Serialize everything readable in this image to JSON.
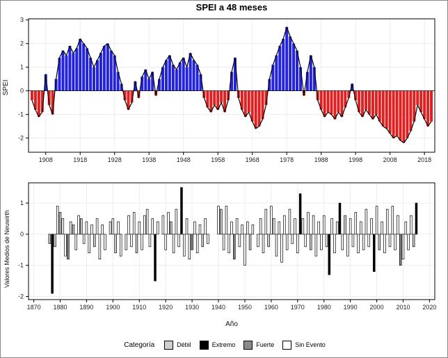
{
  "chart_data": [
    {
      "type": "area",
      "title": "SPEI a 48 meses",
      "xlabel": "",
      "ylabel": "SPEI",
      "xlim": [
        1903,
        2021
      ],
      "ylim": [
        -2.6,
        3.05
      ],
      "x_ticks": [
        1908,
        1918,
        1928,
        1938,
        1948,
        1958,
        1968,
        1978,
        1988,
        1998,
        2008,
        2018
      ],
      "y_ticks": [
        -2,
        -1,
        0,
        1,
        2,
        3
      ],
      "positive_color": "#2323dd",
      "negative_color": "#e02020",
      "line_color": "#000000",
      "grid": true,
      "x": [
        1904,
        1905,
        1906,
        1907,
        1908,
        1909,
        1910,
        1911,
        1912,
        1913,
        1914,
        1915,
        1916,
        1917,
        1918,
        1919,
        1920,
        1921,
        1922,
        1923,
        1924,
        1925,
        1926,
        1927,
        1928,
        1929,
        1930,
        1931,
        1932,
        1933,
        1934,
        1935,
        1936,
        1937,
        1938,
        1939,
        1940,
        1941,
        1942,
        1943,
        1944,
        1945,
        1946,
        1947,
        1948,
        1949,
        1950,
        1951,
        1952,
        1953,
        1954,
        1955,
        1956,
        1957,
        1958,
        1959,
        1960,
        1961,
        1962,
        1963,
        1964,
        1965,
        1966,
        1967,
        1968,
        1969,
        1970,
        1971,
        1972,
        1973,
        1974,
        1975,
        1976,
        1977,
        1978,
        1979,
        1980,
        1981,
        1982,
        1983,
        1984,
        1985,
        1986,
        1987,
        1988,
        1989,
        1990,
        1991,
        1992,
        1993,
        1994,
        1995,
        1996,
        1997,
        1998,
        1999,
        2000,
        2001,
        2002,
        2003,
        2004,
        2005,
        2006,
        2007,
        2008,
        2009,
        2010,
        2011,
        2012,
        2013,
        2014,
        2015,
        2016,
        2017,
        2018,
        2019,
        2020
      ],
      "y": [
        -0.4,
        -0.8,
        -1.1,
        -0.9,
        0.7,
        -0.6,
        -1.0,
        0.5,
        1.4,
        1.7,
        1.5,
        1.9,
        1.6,
        1.8,
        2.2,
        2.0,
        1.8,
        1.4,
        1.0,
        1.3,
        1.6,
        1.9,
        2.0,
        1.7,
        1.5,
        0.8,
        0.3,
        -0.4,
        -0.8,
        -0.5,
        0.4,
        -0.3,
        0.6,
        0.9,
        0.5,
        0.8,
        -0.2,
        0.5,
        1.0,
        1.3,
        1.5,
        1.1,
        0.9,
        1.2,
        1.4,
        1.0,
        1.6,
        1.3,
        1.1,
        0.7,
        -0.3,
        -0.7,
        -0.9,
        -0.6,
        -0.8,
        -0.5,
        -0.9,
        -0.4,
        0.8,
        1.4,
        -0.3,
        -0.8,
        -1.1,
        -0.9,
        -1.3,
        -1.6,
        -1.5,
        -1.2,
        -0.6,
        0.5,
        1.1,
        1.5,
        1.9,
        2.2,
        2.7,
        2.3,
        2.0,
        1.7,
        1.0,
        -0.2,
        0.8,
        1.5,
        1.0,
        -0.4,
        -0.8,
        -1.1,
        -0.9,
        -1.0,
        -1.2,
        -0.9,
        -1.1,
        -0.7,
        -0.3,
        0.3,
        -0.4,
        -0.9,
        -1.1,
        -0.8,
        -1.0,
        -1.2,
        -1.0,
        -1.3,
        -1.5,
        -1.6,
        -1.8,
        -2.0,
        -1.9,
        -2.1,
        -2.2,
        -2.0,
        -1.7,
        -1.3,
        -0.6,
        -0.9,
        -1.2,
        -1.5,
        -1.3
      ]
    },
    {
      "type": "bar",
      "title": "",
      "xlabel": "Año",
      "ylabel": "Valores Medios de Neuwirth",
      "xlim": [
        1868,
        2022
      ],
      "ylim": [
        -2.1,
        1.65
      ],
      "x_ticks": [
        1870,
        1880,
        1890,
        1900,
        1910,
        1920,
        1930,
        1940,
        1950,
        1960,
        1970,
        1980,
        1990,
        2000,
        2010,
        2020
      ],
      "y_ticks": [
        -2,
        -1,
        0,
        1
      ],
      "grid": true,
      "category_colors": {
        "Débil": "#cfcfcf",
        "Extremo": "#000000",
        "Fuerte": "#8a8a8a",
        "Sin Evento": "#ffffff"
      },
      "bars": [
        [
          1876,
          -0.3,
          "Débil"
        ],
        [
          1877,
          -1.9,
          "Extremo"
        ],
        [
          1878,
          -0.4,
          "Débil"
        ],
        [
          1879,
          0.9,
          "Sin Evento"
        ],
        [
          1880,
          0.7,
          "Débil"
        ],
        [
          1881,
          0.5,
          "Sin Evento"
        ],
        [
          1882,
          -0.7,
          "Sin Evento"
        ],
        [
          1883,
          -0.8,
          "Fuerte"
        ],
        [
          1884,
          0.4,
          "Sin Evento"
        ],
        [
          1885,
          0.3,
          "Débil"
        ],
        [
          1886,
          -0.5,
          "Sin Evento"
        ],
        [
          1887,
          0.6,
          "Sin Evento"
        ],
        [
          1888,
          0.5,
          "Débil"
        ],
        [
          1889,
          -0.3,
          "Sin Evento"
        ],
        [
          1890,
          0.4,
          "Sin Evento"
        ],
        [
          1891,
          -0.6,
          "Sin Evento"
        ],
        [
          1892,
          0.3,
          "Sin Evento"
        ],
        [
          1893,
          -0.4,
          "Débil"
        ],
        [
          1894,
          0.5,
          "Sin Evento"
        ],
        [
          1895,
          -0.8,
          "Sin Evento"
        ],
        [
          1896,
          0.3,
          "Sin Evento"
        ],
        [
          1897,
          -0.5,
          "Sin Evento"
        ],
        [
          1899,
          0.4,
          "Sin Evento"
        ],
        [
          1900,
          0.5,
          "Sin Evento"
        ],
        [
          1901,
          -0.6,
          "Débil"
        ],
        [
          1902,
          0.4,
          "Sin Evento"
        ],
        [
          1903,
          -0.7,
          "Sin Evento"
        ],
        [
          1905,
          -0.5,
          "Sin Evento"
        ],
        [
          1906,
          0.6,
          "Sin Evento"
        ],
        [
          1907,
          -0.4,
          "Sin Evento"
        ],
        [
          1908,
          0.7,
          "Sin Evento"
        ],
        [
          1909,
          -0.6,
          "Débil"
        ],
        [
          1910,
          0.4,
          "Sin Evento"
        ],
        [
          1911,
          -0.5,
          "Sin Evento"
        ],
        [
          1912,
          0.6,
          "Sin Evento"
        ],
        [
          1913,
          0.8,
          "Sin Evento"
        ],
        [
          1914,
          -0.4,
          "Sin Evento"
        ],
        [
          1915,
          0.5,
          "Sin Evento"
        ],
        [
          1916,
          -1.5,
          "Extremo"
        ],
        [
          1917,
          0.4,
          "Sin Evento"
        ],
        [
          1919,
          0.6,
          "Sin Evento"
        ],
        [
          1920,
          -0.5,
          "Sin Evento"
        ],
        [
          1921,
          0.7,
          "Sin Evento"
        ],
        [
          1922,
          0.4,
          "Débil"
        ],
        [
          1923,
          -0.6,
          "Sin Evento"
        ],
        [
          1924,
          0.8,
          "Sin Evento"
        ],
        [
          1925,
          -0.4,
          "Sin Evento"
        ],
        [
          1926,
          1.5,
          "Extremo"
        ],
        [
          1927,
          -0.7,
          "Sin Evento"
        ],
        [
          1928,
          0.5,
          "Sin Evento"
        ],
        [
          1929,
          -0.8,
          "Sin Evento"
        ],
        [
          1930,
          -0.5,
          "Fuerte"
        ],
        [
          1931,
          0.4,
          "Sin Evento"
        ],
        [
          1932,
          -0.6,
          "Sin Evento"
        ],
        [
          1933,
          0.3,
          "Sin Evento"
        ],
        [
          1934,
          -0.4,
          "Débil"
        ],
        [
          1935,
          0.5,
          "Sin Evento"
        ],
        [
          1936,
          -0.3,
          "Sin Evento"
        ],
        [
          1940,
          0.9,
          "Sin Evento"
        ],
        [
          1941,
          0.8,
          "Débil"
        ],
        [
          1942,
          -0.5,
          "Sin Evento"
        ],
        [
          1943,
          0.9,
          "Sin Evento"
        ],
        [
          1944,
          -0.6,
          "Sin Evento"
        ],
        [
          1945,
          0.4,
          "Sin Evento"
        ],
        [
          1946,
          -0.8,
          "Fuerte"
        ],
        [
          1947,
          0.5,
          "Sin Evento"
        ],
        [
          1948,
          -0.4,
          "Sin Evento"
        ],
        [
          1949,
          0.3,
          "Sin Evento"
        ],
        [
          1950,
          -1.0,
          "Sin Evento"
        ],
        [
          1951,
          0.4,
          "Sin Evento"
        ],
        [
          1952,
          -0.5,
          "Débil"
        ],
        [
          1953,
          0.3,
          "Sin Evento"
        ],
        [
          1955,
          -0.4,
          "Sin Evento"
        ],
        [
          1956,
          0.5,
          "Sin Evento"
        ],
        [
          1957,
          -0.6,
          "Sin Evento"
        ],
        [
          1958,
          0.8,
          "Sin Evento"
        ],
        [
          1959,
          -0.4,
          "Débil"
        ],
        [
          1960,
          0.9,
          "Sin Evento"
        ],
        [
          1961,
          0.5,
          "Sin Evento"
        ],
        [
          1962,
          -0.7,
          "Sin Evento"
        ],
        [
          1963,
          0.4,
          "Sin Evento"
        ],
        [
          1964,
          -0.9,
          "Sin Evento"
        ],
        [
          1965,
          0.6,
          "Sin Evento"
        ],
        [
          1966,
          -0.5,
          "Sin Evento"
        ],
        [
          1967,
          0.8,
          "Sin Evento"
        ],
        [
          1968,
          -0.3,
          "Sin Evento"
        ],
        [
          1969,
          0.5,
          "Sin Evento"
        ],
        [
          1970,
          -0.6,
          "Sin Evento"
        ],
        [
          1971,
          1.3,
          "Extremo"
        ],
        [
          1972,
          0.5,
          "Sin Evento"
        ],
        [
          1973,
          -0.4,
          "Sin Evento"
        ],
        [
          1974,
          0.7,
          "Sin Evento"
        ],
        [
          1975,
          -0.5,
          "Débil"
        ],
        [
          1976,
          0.6,
          "Sin Evento"
        ],
        [
          1977,
          -0.7,
          "Sin Evento"
        ],
        [
          1978,
          0.4,
          "Sin Evento"
        ],
        [
          1979,
          -0.5,
          "Sin Evento"
        ],
        [
          1980,
          0.6,
          "Sin Evento"
        ],
        [
          1981,
          -0.4,
          "Sin Evento"
        ],
        [
          1982,
          -1.3,
          "Extremo"
        ],
        [
          1983,
          0.5,
          "Sin Evento"
        ],
        [
          1984,
          -0.6,
          "Sin Evento"
        ],
        [
          1985,
          0.4,
          "Sin Evento"
        ],
        [
          1986,
          1.0,
          "Extremo"
        ],
        [
          1987,
          -0.5,
          "Sin Evento"
        ],
        [
          1988,
          0.6,
          "Débil"
        ],
        [
          1989,
          -0.7,
          "Sin Evento"
        ],
        [
          1990,
          0.5,
          "Sin Evento"
        ],
        [
          1991,
          -0.4,
          "Sin Evento"
        ],
        [
          1992,
          0.7,
          "Sin Evento"
        ],
        [
          1993,
          -0.6,
          "Sin Evento"
        ],
        [
          1994,
          0.4,
          "Sin Evento"
        ],
        [
          1995,
          -0.5,
          "Sin Evento"
        ],
        [
          1996,
          0.8,
          "Sin Evento"
        ],
        [
          1997,
          -0.4,
          "Sin Evento"
        ],
        [
          1998,
          0.5,
          "Sin Evento"
        ],
        [
          1999,
          -1.2,
          "Extremo"
        ],
        [
          2000,
          0.9,
          "Sin Evento"
        ],
        [
          2001,
          -0.5,
          "Débil"
        ],
        [
          2002,
          0.4,
          "Sin Evento"
        ],
        [
          2003,
          -0.6,
          "Sin Evento"
        ],
        [
          2004,
          0.8,
          "Sin Evento"
        ],
        [
          2005,
          -0.4,
          "Sin Evento"
        ],
        [
          2006,
          0.9,
          "Sin Evento"
        ],
        [
          2007,
          -0.5,
          "Sin Evento"
        ],
        [
          2008,
          0.6,
          "Sin Evento"
        ],
        [
          2009,
          -1.0,
          "Fuerte"
        ],
        [
          2010,
          -0.8,
          "Sin Evento"
        ],
        [
          2011,
          0.4,
          "Sin Evento"
        ],
        [
          2012,
          -0.5,
          "Sin Evento"
        ],
        [
          2013,
          0.6,
          "Sin Evento"
        ],
        [
          2014,
          -0.4,
          "Débil"
        ],
        [
          2015,
          1.0,
          "Extremo"
        ]
      ]
    }
  ],
  "legend": {
    "title": "Categoría",
    "items": [
      {
        "label": "Débil",
        "color": "#cfcfcf"
      },
      {
        "label": "Extremo",
        "color": "#000000"
      },
      {
        "label": "Fuerte",
        "color": "#8a8a8a"
      },
      {
        "label": "Sin Evento",
        "color": "#ffffff"
      }
    ]
  }
}
